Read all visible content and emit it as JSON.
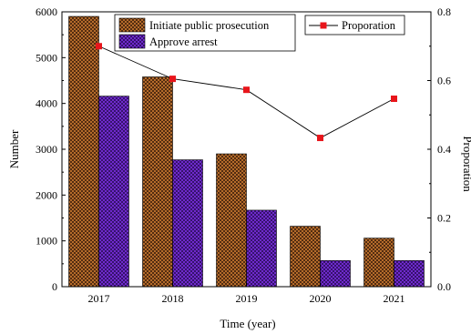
{
  "chart_data": {
    "type": "bar",
    "categories": [
      "2017",
      "2018",
      "2019",
      "2020",
      "2021"
    ],
    "series": [
      {
        "name": "Initiate public prosecution",
        "type": "bar",
        "axis": "left",
        "values": [
          5900,
          4580,
          2900,
          1320,
          1060
        ],
        "color": "#c87830"
      },
      {
        "name": "Approve arrest",
        "type": "bar",
        "axis": "left",
        "values": [
          4160,
          2770,
          1670,
          570,
          570
        ],
        "color": "#7b2fe0"
      },
      {
        "name": "Proporation",
        "type": "line",
        "axis": "right",
        "values": [
          0.7,
          0.605,
          0.573,
          0.433,
          0.547
        ],
        "color": "#e8151b"
      }
    ],
    "xlabel": "Time (year)",
    "ylabel": "Number",
    "y2label": "Proporation",
    "ylim": [
      0,
      6000
    ],
    "y2lim": [
      0,
      0.8
    ],
    "yticks": [
      "0",
      "1000",
      "2000",
      "3000",
      "4000",
      "5000",
      "6000"
    ],
    "y2ticks": [
      "0.0",
      "0.2",
      "0.4",
      "0.6",
      "0.8"
    ],
    "grid": false,
    "legend_position": "top"
  }
}
